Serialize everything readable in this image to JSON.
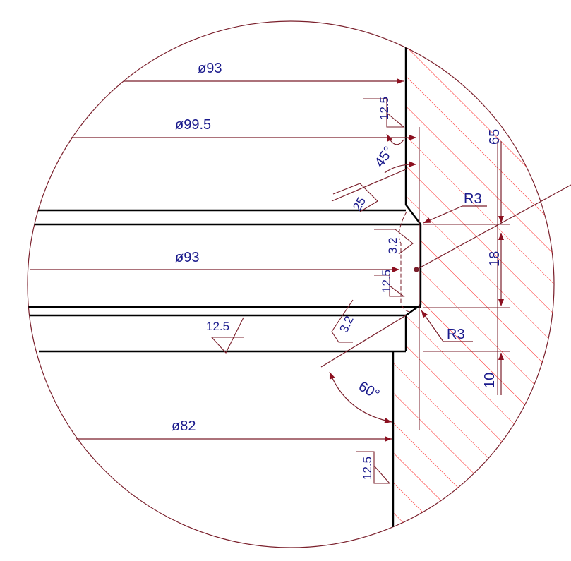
{
  "colors": {
    "outline": "#000000",
    "detail_circle": "#7a1f2b",
    "dimension_line": "#7a1f2b",
    "arrow": "#8c1020",
    "hatch": "#ff2020",
    "text": "#1a1a8c"
  },
  "dimensions": {
    "dia_top": "ø93",
    "dia_second": "ø99.5",
    "dia_middle": "ø93",
    "dia_bottom": "ø82",
    "angle_45": "45°",
    "angle_60": "60°",
    "radius_upper": "R3",
    "radius_lower": "R3",
    "length_65": "65",
    "length_18": "18",
    "length_10": "10"
  },
  "roughness": {
    "top_wall": "12.5",
    "chamfer": "25",
    "groove_face": "3.2",
    "groove_bottom": "12.5",
    "bore_lower": "12.5",
    "step_face": "3.2",
    "bottom_wall": "12.5"
  }
}
